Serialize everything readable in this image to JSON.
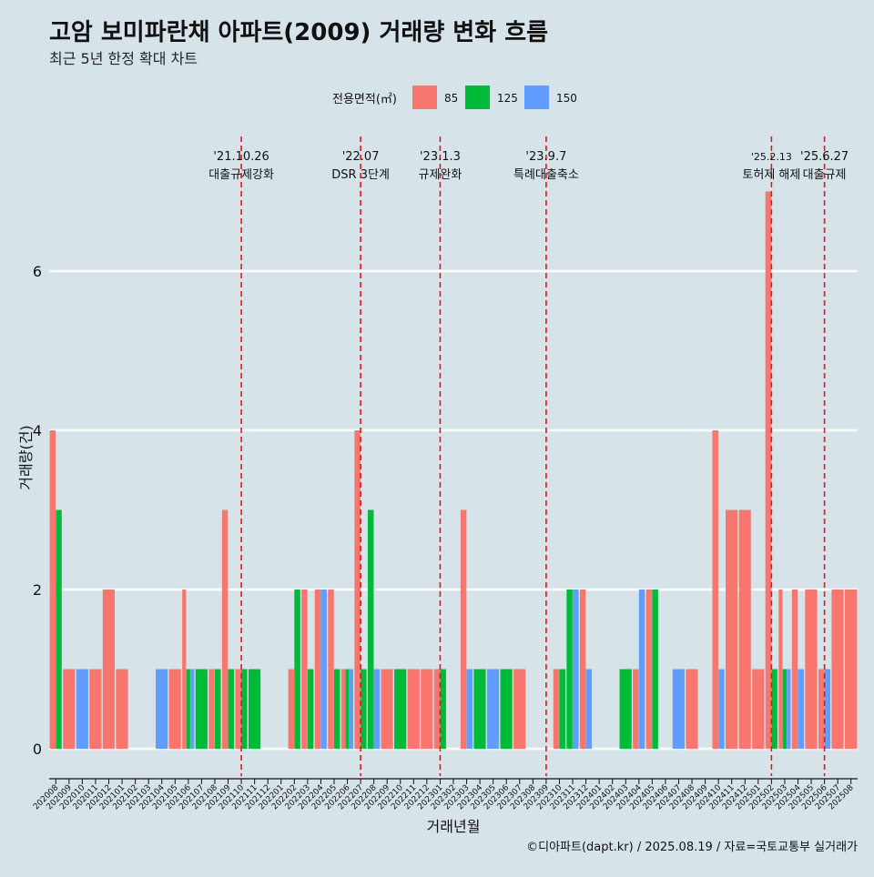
{
  "chart_data": {
    "type": "bar",
    "title": "고암 보미파란채 아파트(2009) 거래량 변화 흐름",
    "subtitle": "최근 5년 한정 확대 차트",
    "xlabel": "거래년월",
    "ylabel": "거래량(건)",
    "caption": "©디아파트(dapt.kr) / 2025.08.19 / 자료=국토교통부 실거래가",
    "legend_title": "전용면적(㎡)",
    "legend_position": "top",
    "ylim": [
      -0.35,
      7.3
    ],
    "yticks": [
      0,
      2,
      4,
      6
    ],
    "grid": true,
    "colors": {
      "85": "#f8766d",
      "125": "#00ba38",
      "150": "#619cff",
      "background": "#d6e4ea",
      "event_line": "#e8141b"
    },
    "series": [
      {
        "name": "85",
        "color": "#f8766d"
      },
      {
        "name": "125",
        "color": "#00ba38"
      },
      {
        "name": "150",
        "color": "#619cff"
      }
    ],
    "categories": [
      "202008",
      "202009",
      "202010",
      "202011",
      "202012",
      "202101",
      "202102",
      "202103",
      "202104",
      "202105",
      "202106",
      "202107",
      "202108",
      "202109",
      "202110",
      "202111",
      "202112",
      "202201",
      "202202",
      "202203",
      "202204",
      "202205",
      "202206",
      "202207",
      "202208",
      "202209",
      "202210",
      "202211",
      "202212",
      "202301",
      "202302",
      "202303",
      "202304",
      "202305",
      "202306",
      "202307",
      "202308",
      "202309",
      "202310",
      "202311",
      "202312",
      "202401",
      "202402",
      "202403",
      "202404",
      "202405",
      "202406",
      "202407",
      "202408",
      "202409",
      "202410",
      "202411",
      "202412",
      "202501",
      "202502",
      "202503",
      "202504",
      "202505",
      "202506",
      "202507",
      "202508"
    ],
    "bars": [
      {
        "month": "202008",
        "values": {
          "85": 4,
          "125": 3
        }
      },
      {
        "month": "202009",
        "values": {
          "85": 1
        }
      },
      {
        "month": "202010",
        "values": {
          "150": 1
        }
      },
      {
        "month": "202011",
        "values": {
          "85": 1
        }
      },
      {
        "month": "202012",
        "values": {
          "85": 2
        }
      },
      {
        "month": "202101",
        "values": {
          "85": 1
        }
      },
      {
        "month": "202104",
        "values": {
          "150": 1
        }
      },
      {
        "month": "202105",
        "values": {
          "85": 1
        }
      },
      {
        "month": "202106",
        "values": {
          "85": 2,
          "125": 1,
          "150": 1
        }
      },
      {
        "month": "202107",
        "values": {
          "125": 1
        }
      },
      {
        "month": "202108",
        "values": {
          "85": 1,
          "125": 1
        }
      },
      {
        "month": "202109",
        "values": {
          "85": 3,
          "125": 1
        }
      },
      {
        "month": "202110",
        "values": {
          "85": 1,
          "125": 1
        }
      },
      {
        "month": "202111",
        "values": {
          "125": 1
        }
      },
      {
        "month": "202202",
        "values": {
          "85": 1,
          "125": 2
        }
      },
      {
        "month": "202203",
        "values": {
          "85": 2,
          "125": 1
        }
      },
      {
        "month": "202204",
        "values": {
          "85": 2,
          "150": 2
        }
      },
      {
        "month": "202205",
        "values": {
          "85": 2,
          "125": 1
        }
      },
      {
        "month": "202206",
        "values": {
          "85": 1,
          "125": 1,
          "150": 1
        }
      },
      {
        "month": "202207",
        "values": {
          "85": 4,
          "125": 1
        }
      },
      {
        "month": "202208",
        "values": {
          "125": 3,
          "150": 1
        }
      },
      {
        "month": "202209",
        "values": {
          "85": 1
        }
      },
      {
        "month": "202210",
        "values": {
          "125": 1
        }
      },
      {
        "month": "202211",
        "values": {
          "85": 1
        }
      },
      {
        "month": "202212",
        "values": {
          "85": 1
        }
      },
      {
        "month": "202301",
        "values": {
          "85": 1,
          "125": 1
        }
      },
      {
        "month": "202303",
        "values": {
          "85": 3,
          "150": 1
        }
      },
      {
        "month": "202304",
        "values": {
          "125": 1
        }
      },
      {
        "month": "202305",
        "values": {
          "150": 1
        }
      },
      {
        "month": "202306",
        "values": {
          "125": 1
        }
      },
      {
        "month": "202307",
        "values": {
          "85": 1
        }
      },
      {
        "month": "202310",
        "values": {
          "85": 1,
          "125": 1
        }
      },
      {
        "month": "202311",
        "values": {
          "125": 2,
          "150": 2
        }
      },
      {
        "month": "202312",
        "values": {
          "85": 2,
          "150": 1
        }
      },
      {
        "month": "202403",
        "values": {
          "125": 1
        }
      },
      {
        "month": "202404",
        "values": {
          "85": 1,
          "150": 2
        }
      },
      {
        "month": "202405",
        "values": {
          "85": 2,
          "125": 2
        }
      },
      {
        "month": "202407",
        "values": {
          "150": 1
        }
      },
      {
        "month": "202408",
        "values": {
          "85": 1
        }
      },
      {
        "month": "202410",
        "values": {
          "85": 4,
          "150": 1
        }
      },
      {
        "month": "202411",
        "values": {
          "85": 3
        }
      },
      {
        "month": "202412",
        "values": {
          "85": 3
        }
      },
      {
        "month": "202501",
        "values": {
          "85": 1
        }
      },
      {
        "month": "202502",
        "values": {
          "85": 7,
          "125": 1
        }
      },
      {
        "month": "202503",
        "values": {
          "85": 2,
          "125": 1,
          "150": 1
        }
      },
      {
        "month": "202504",
        "values": {
          "85": 2,
          "150": 1
        }
      },
      {
        "month": "202505",
        "values": {
          "85": 2
        }
      },
      {
        "month": "202506",
        "values": {
          "85": 1,
          "150": 1
        }
      },
      {
        "month": "202507",
        "values": {
          "85": 2
        }
      },
      {
        "month": "202508",
        "values": {
          "85": 2
        }
      }
    ],
    "events": [
      {
        "date": "'21.10.26",
        "label": "대출규제강화",
        "month": "202110"
      },
      {
        "date": "'22.07",
        "label": "DSR 3단계",
        "month": "202207"
      },
      {
        "date": "'23.1.3",
        "label": "규제완화",
        "month": "202301"
      },
      {
        "date": "'23.9.7",
        "label": "특례대출축소",
        "month": "202309"
      },
      {
        "date": "'25.2.13",
        "label": "토허제 해제",
        "month": "202502"
      },
      {
        "date": "'25.6.27",
        "label": "대출규제",
        "month": "202506"
      }
    ]
  }
}
